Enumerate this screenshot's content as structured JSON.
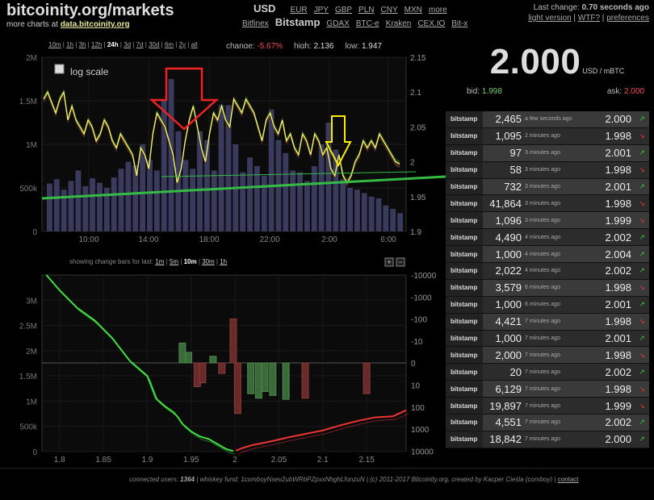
{
  "brand": {
    "title": "bitcoinity.org/markets",
    "sub_prefix": "more charts at",
    "sub_link": "data.bitcoinity.org"
  },
  "currencies": {
    "active": "USD",
    "others": [
      "EUR",
      "JPY",
      "GBP",
      "PLN",
      "CNY",
      "MXN",
      "more"
    ]
  },
  "exchanges": {
    "active": "Bitstamp",
    "before": [
      "Bitfinex"
    ],
    "after": [
      "GDAX",
      "BTC-e",
      "Kraken",
      "CEX.IO",
      "Bit-x"
    ]
  },
  "top_right": {
    "last_change_label": "Last change:",
    "last_change_value": "0.70 seconds ago",
    "links": [
      "light version",
      "WTF?",
      "preferences"
    ]
  },
  "time_ranges": {
    "items": [
      "10m",
      "1h",
      "3h",
      "12h",
      "24h",
      "3d",
      "7d",
      "30d",
      "6m",
      "2y",
      "all"
    ],
    "active": "24h"
  },
  "stats": {
    "change_label": "change:",
    "change_value": "-5.67%",
    "high_label": "high:",
    "high_value": "2.136",
    "low_label": "low:",
    "low_value": "1.947"
  },
  "log_scale_label": "log scale",
  "lower_controls": {
    "label": "showing change bars for last:",
    "items": [
      "1m",
      "5m",
      "10m",
      "30m",
      "1h"
    ],
    "active": "10m"
  },
  "price": {
    "value": "2.000",
    "unit": "USD / mBTC",
    "bid_label": "bid:",
    "bid_value": "1.998",
    "ask_label": "ask:",
    "ask_value": "2.000"
  },
  "trades": [
    {
      "exchange": "bitstamp",
      "amount": "2,465",
      "time": "a few seconds ago",
      "price": "2.000",
      "dir": "up"
    },
    {
      "exchange": "bitstamp",
      "amount": "1,095",
      "time": "2 minutes ago",
      "price": "1.998",
      "dir": "down"
    },
    {
      "exchange": "bitstamp",
      "amount": "97",
      "time": "3 minutes ago",
      "price": "2.001",
      "dir": "up"
    },
    {
      "exchange": "bitstamp",
      "amount": "58",
      "time": "3 minutes ago",
      "price": "1.998",
      "dir": "down"
    },
    {
      "exchange": "bitstamp",
      "amount": "732",
      "time": "3 minutes ago",
      "price": "2.001",
      "dir": "up"
    },
    {
      "exchange": "bitstamp",
      "amount": "41,864",
      "time": "3 minutes ago",
      "price": "1.998",
      "dir": "down"
    },
    {
      "exchange": "bitstamp",
      "amount": "1,096",
      "time": "3 minutes ago",
      "price": "1.999",
      "dir": "down"
    },
    {
      "exchange": "bitstamp",
      "amount": "4,490",
      "time": "4 minutes ago",
      "price": "2.002",
      "dir": "up"
    },
    {
      "exchange": "bitstamp",
      "amount": "1,000",
      "time": "4 minutes ago",
      "price": "2.004",
      "dir": "up"
    },
    {
      "exchange": "bitstamp",
      "amount": "2,022",
      "time": "4 minutes ago",
      "price": "2.002",
      "dir": "up"
    },
    {
      "exchange": "bitstamp",
      "amount": "3,579",
      "time": "6 minutes ago",
      "price": "1.998",
      "dir": "down"
    },
    {
      "exchange": "bitstamp",
      "amount": "1,000",
      "time": "6 minutes ago",
      "price": "2.001",
      "dir": "up"
    },
    {
      "exchange": "bitstamp",
      "amount": "4,421",
      "time": "7 minutes ago",
      "price": "1.998",
      "dir": "down"
    },
    {
      "exchange": "bitstamp",
      "amount": "1,000",
      "time": "7 minutes ago",
      "price": "2.001",
      "dir": "up"
    },
    {
      "exchange": "bitstamp",
      "amount": "2,000",
      "time": "7 minutes ago",
      "price": "1.998",
      "dir": "down"
    },
    {
      "exchange": "bitstamp",
      "amount": "20",
      "time": "7 minutes ago",
      "price": "2.002",
      "dir": "up"
    },
    {
      "exchange": "bitstamp",
      "amount": "6,129",
      "time": "7 minutes ago",
      "price": "1.998",
      "dir": "down"
    },
    {
      "exchange": "bitstamp",
      "amount": "19,897",
      "time": "7 minutes ago",
      "price": "1.999",
      "dir": "down"
    },
    {
      "exchange": "bitstamp",
      "amount": "4,551",
      "time": "7 minutes ago",
      "price": "2.002",
      "dir": "up"
    },
    {
      "exchange": "bitstamp",
      "amount": "18,842",
      "time": "7 minutes ago",
      "price": "2.000",
      "dir": "up"
    }
  ],
  "footer": {
    "users_label": "connected users:",
    "users_value": "1364",
    "fund_label": "whiskey fund:",
    "fund_value": "1comboyNsev2ubWRbPZpxxNhghLfonzuN",
    "copy": "(c) 2011-2017 Bitcoinity.org, created by Kacper Cieśla (comboy)",
    "contact": "contact"
  },
  "chart_data": [
    {
      "type": "line",
      "title": "",
      "x_tick_labels": [
        "10:00",
        "14:00",
        "18:00",
        "22:00",
        "2:00",
        "6:00"
      ],
      "y_left_tick_labels": [
        "0",
        "500k",
        "1M",
        "1.5M",
        "2M"
      ],
      "y_right_tick_labels": [
        "1.9",
        "1.95",
        "2",
        "2.05",
        "2.1",
        "2.15"
      ],
      "ylim_price": [
        1.9,
        2.15
      ],
      "ylim_volume": [
        0,
        2000000
      ],
      "series": [
        {
          "values": [
            2.09,
            2.1,
            2.085,
            2.07,
            2.09,
            2.1,
            2.06,
            2.08,
            2.06,
            2.05,
            2.04,
            2.06,
            2.05,
            2.03,
            2.04,
            2.06,
            2.05,
            2.03,
            2.02,
            2.04,
            2.03,
            2.02,
            2.01,
            1.98,
            2.02,
            2.01,
            1.99,
            2.04,
            2.07,
            2.06,
            2.05,
            2.03,
            2.01,
            1.97,
            1.99,
            2.03,
            2.06,
            2.08,
            2.05,
            2.02,
            2.0,
            2.04,
            2.07,
            2.06,
            2.08,
            2.06,
            2.05,
            2.09,
            2.08,
            2.07,
            2.09,
            2.08,
            2.07,
            2.05,
            2.03,
            2.06,
            2.07,
            2.05,
            2.04,
            2.06,
            2.03,
            2.04,
            2.02,
            2.01,
            2.04,
            2.03,
            2.01,
            2.04,
            2.03,
            2.01,
            2.02,
            1.99,
            1.98,
            2.01,
            1.98,
            1.97,
            1.98,
            2.0,
            2.01,
            2.03,
            2.02,
            2.03,
            2.02,
            2.04,
            2.03,
            2.02,
            2.01,
            2.0,
            1.997
          ]
        },
        {
          "kind": "volume",
          "values": [
            550000,
            600000,
            480000,
            580000,
            700000,
            520000,
            610000,
            560000,
            500000,
            620000,
            720000,
            800000,
            760000,
            1000000,
            820000,
            700000,
            1500000,
            1750000,
            1150000,
            820000,
            720000,
            1150000,
            1050000,
            700000,
            1450000,
            1450000,
            1000000,
            680000,
            850000,
            750000,
            640000,
            1400000,
            1050000,
            900000,
            700000,
            680000,
            580000,
            750000,
            1000000,
            1250000,
            940000,
            600000,
            500000,
            480000,
            440000,
            400000,
            380000,
            300000,
            260000,
            210000
          ]
        }
      ],
      "overlays": {
        "trend_line": true,
        "down_arrow_red": true,
        "down_arrow_yellow": true
      }
    },
    {
      "type": "line",
      "title": "",
      "x_tick_labels": [
        "1.8",
        "1.85",
        "1.9",
        "1.95",
        "2",
        "2.05",
        "2.1",
        "2.15"
      ],
      "y_left_tick_labels": [
        "0",
        "500k",
        "1M",
        "1.5M",
        "2M",
        "2.5M",
        "3M"
      ],
      "y_right_tick_labels": [
        "-10000",
        "-1000",
        "-100",
        "-10",
        "0",
        "10",
        "100",
        "1000",
        "10000"
      ],
      "xlim": [
        1.78,
        2.195
      ],
      "ylim": [
        0,
        3500000
      ],
      "series": [
        {
          "name": "bids",
          "color": "#44dd44",
          "x": [
            1.785,
            1.8,
            1.82,
            1.84,
            1.86,
            1.88,
            1.9,
            1.91,
            1.92,
            1.93,
            1.935,
            1.94,
            1.95,
            1.96,
            1.97,
            1.98,
            1.99,
            1.998
          ],
          "y": [
            3500000,
            3200000,
            2850000,
            2600000,
            2250000,
            1800000,
            1500000,
            1050000,
            900000,
            780000,
            680000,
            550000,
            400000,
            300000,
            250000,
            150000,
            50000,
            10000
          ]
        },
        {
          "name": "asks",
          "color": "#ee3333",
          "x": [
            2.001,
            2.01,
            2.02,
            2.04,
            2.06,
            2.08,
            2.1,
            2.12,
            2.14,
            2.16,
            2.18,
            2.195
          ],
          "y": [
            20000,
            80000,
            130000,
            200000,
            280000,
            350000,
            420000,
            520000,
            610000,
            680000,
            700000,
            820000
          ]
        }
      ],
      "change_bars": [
        {
          "x": 1.94,
          "v": 8,
          "color": "#3a6a3a"
        },
        {
          "x": 1.947,
          "v": 3,
          "color": "#3a6a3a"
        },
        {
          "x": 1.957,
          "v": -12,
          "color": "#6a2a2a"
        },
        {
          "x": 1.963,
          "v": -8,
          "color": "#6a2a2a"
        },
        {
          "x": 1.975,
          "v": 2,
          "color": "#3a6a3a"
        },
        {
          "x": 1.985,
          "v": -3,
          "color": "#6a2a2a"
        },
        {
          "x": 1.998,
          "v": 100,
          "color": "#6a2a2a"
        },
        {
          "x": 2.003,
          "v": -200,
          "color": "#6a2a2a"
        },
        {
          "x": 2.018,
          "v": -25,
          "color": "#3a6a3a"
        },
        {
          "x": 2.027,
          "v": -40,
          "color": "#3a6a3a"
        },
        {
          "x": 2.034,
          "v": -20,
          "color": "#3a6a3a"
        },
        {
          "x": 2.043,
          "v": -30,
          "color": "#3a6a3a"
        },
        {
          "x": 2.058,
          "v": -45,
          "color": "#3a6a3a"
        },
        {
          "x": 2.08,
          "v": -40,
          "color": "#6a2a2a"
        },
        {
          "x": 2.15,
          "v": -25,
          "color": "#6a2a2a"
        }
      ]
    }
  ]
}
